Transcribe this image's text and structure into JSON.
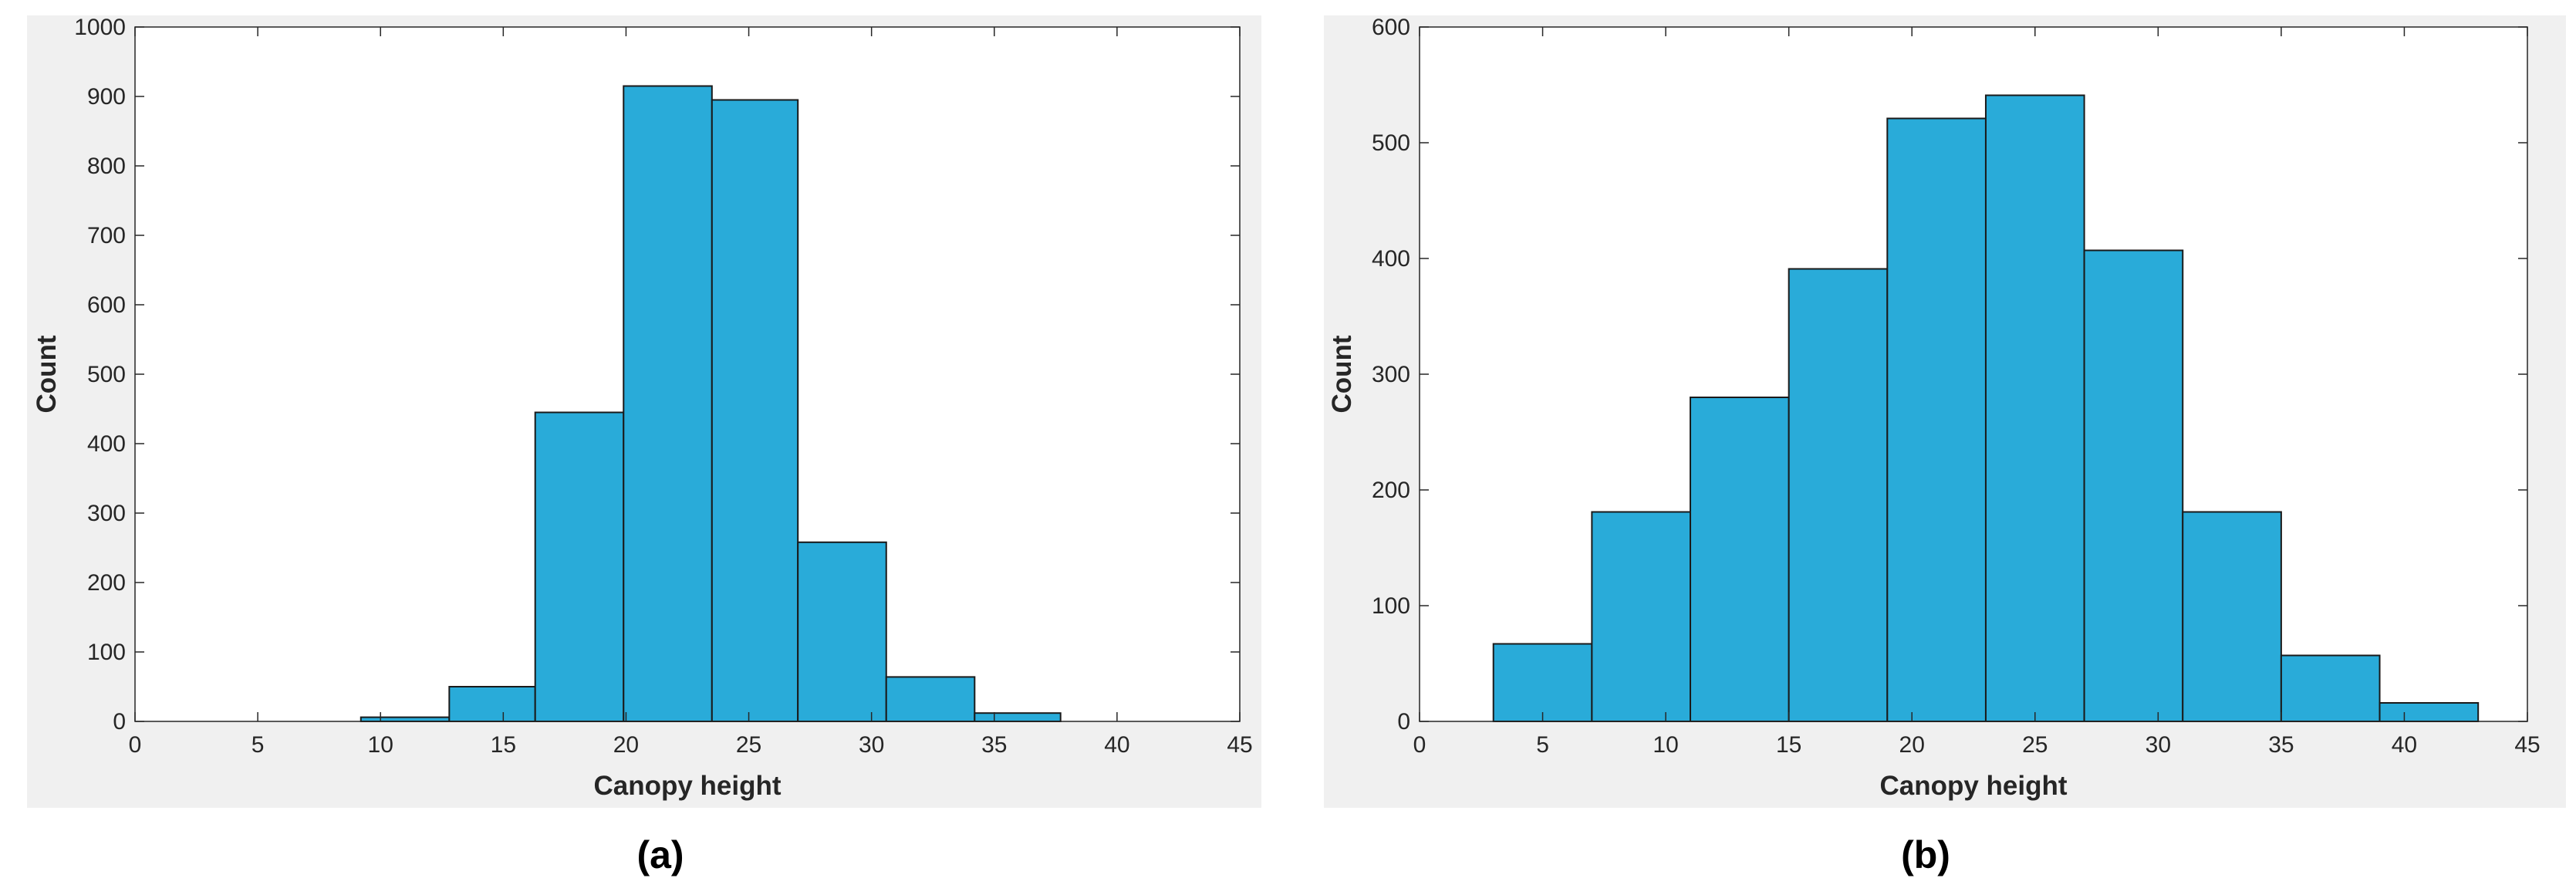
{
  "colors": {
    "bar_fill": "#29abd9",
    "bar_edge": "#1a1a1a",
    "figure_bg": "#f0f0f0",
    "axes_bg": "#ffffff",
    "axis_color": "#262626"
  },
  "chart_data": [
    {
      "type": "bar",
      "subplot_label": "(a)",
      "xlabel": "Canopy height",
      "ylabel": "Count",
      "xlim": [
        0,
        45
      ],
      "ylim": [
        0,
        1000
      ],
      "xticks": [
        0,
        5,
        10,
        15,
        20,
        25,
        30,
        35,
        40,
        45
      ],
      "yticks": [
        0,
        100,
        200,
        300,
        400,
        500,
        600,
        700,
        800,
        900,
        1000
      ],
      "bin_edges": [
        9.2,
        12.8,
        16.3,
        19.9,
        23.5,
        27.0,
        30.6,
        34.2,
        37.7
      ],
      "values": [
        6,
        50,
        445,
        915,
        895,
        258,
        64,
        12
      ],
      "grid": false,
      "legend": "none"
    },
    {
      "type": "bar",
      "subplot_label": "(b)",
      "xlabel": "Canopy height",
      "ylabel": "Count",
      "xlim": [
        0,
        45
      ],
      "ylim": [
        0,
        600
      ],
      "xticks": [
        0,
        5,
        10,
        15,
        20,
        25,
        30,
        35,
        40,
        45
      ],
      "yticks": [
        0,
        100,
        200,
        300,
        400,
        500,
        600
      ],
      "bin_edges": [
        3,
        7,
        11,
        15,
        19,
        23,
        27,
        31,
        35,
        39,
        43
      ],
      "values": [
        67,
        181,
        280,
        391,
        521,
        541,
        407,
        181,
        57,
        16
      ],
      "grid": false,
      "legend": "none"
    }
  ]
}
